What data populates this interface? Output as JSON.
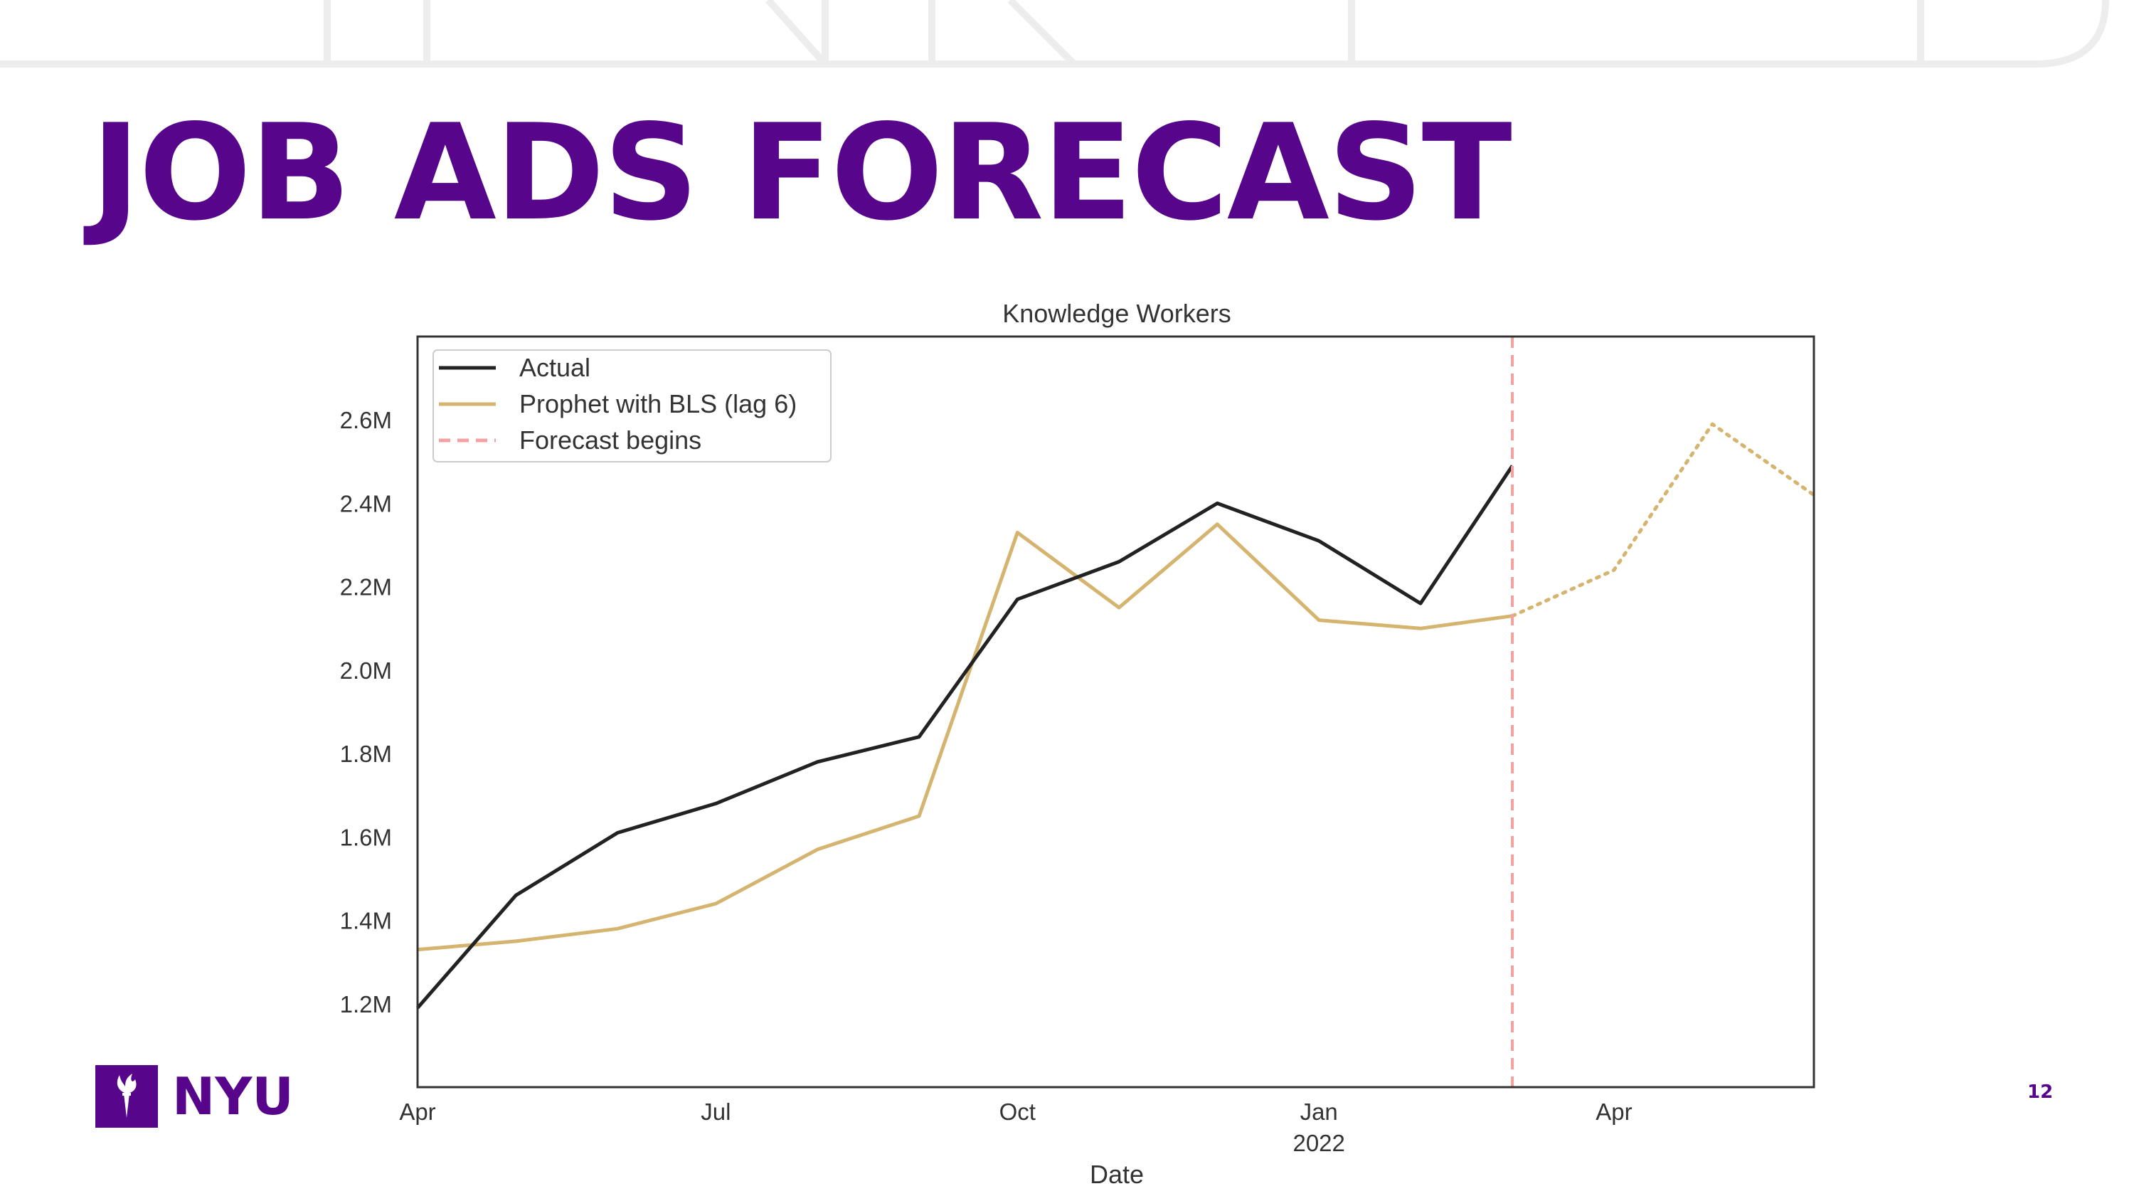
{
  "slide": {
    "title": "JOB ADS FORECAST",
    "page_number": "12",
    "logo_text": "NYU",
    "accent_color": "#57068c"
  },
  "chart_data": {
    "type": "line",
    "title": "Knowledge Workers",
    "xlabel": "Date",
    "ylabel": "",
    "x_ticks": [
      {
        "date": "2021-04-01",
        "label": "Apr",
        "sublabel": ""
      },
      {
        "date": "2021-07-01",
        "label": "Jul",
        "sublabel": ""
      },
      {
        "date": "2021-10-01",
        "label": "Oct",
        "sublabel": ""
      },
      {
        "date": "2022-01-01",
        "label": "Jan",
        "sublabel": "2022"
      },
      {
        "date": "2022-04-01",
        "label": "Apr",
        "sublabel": ""
      }
    ],
    "y_ticks": [
      {
        "value": 1200000,
        "label": "1.2M"
      },
      {
        "value": 1400000,
        "label": "1.4M"
      },
      {
        "value": 1600000,
        "label": "1.6M"
      },
      {
        "value": 1800000,
        "label": "1.8M"
      },
      {
        "value": 2000000,
        "label": "2.0M"
      },
      {
        "value": 2200000,
        "label": "2.2M"
      },
      {
        "value": 2400000,
        "label": "2.4M"
      },
      {
        "value": 2600000,
        "label": "2.6M"
      }
    ],
    "xlim": [
      "2021-04-01",
      "2022-06-01"
    ],
    "ylim": [
      1000000,
      2800000
    ],
    "grid": false,
    "legend_position": "top-left",
    "series": [
      {
        "name": "Actual",
        "color": "#222222",
        "style": "solid",
        "points": [
          [
            "2021-04-01",
            1190000
          ],
          [
            "2021-05-01",
            1460000
          ],
          [
            "2021-06-01",
            1610000
          ],
          [
            "2021-07-01",
            1680000
          ],
          [
            "2021-08-01",
            1780000
          ],
          [
            "2021-09-01",
            1840000
          ],
          [
            "2021-10-01",
            2170000
          ],
          [
            "2021-11-01",
            2260000
          ],
          [
            "2021-12-01",
            2400000
          ],
          [
            "2022-01-01",
            2310000
          ],
          [
            "2022-02-01",
            2160000
          ],
          [
            "2022-03-01",
            2490000
          ]
        ]
      },
      {
        "name": "Prophet with BLS (lag 6)",
        "color": "#d4b46e",
        "style": "solid",
        "points": [
          [
            "2021-04-01",
            1330000
          ],
          [
            "2021-05-01",
            1350000
          ],
          [
            "2021-06-01",
            1380000
          ],
          [
            "2021-07-01",
            1440000
          ],
          [
            "2021-08-01",
            1570000
          ],
          [
            "2021-09-01",
            1650000
          ],
          [
            "2021-10-01",
            2330000
          ],
          [
            "2021-11-01",
            2150000
          ],
          [
            "2021-12-01",
            2350000
          ],
          [
            "2022-01-01",
            2120000
          ],
          [
            "2022-02-01",
            2100000
          ],
          [
            "2022-03-01",
            2130000
          ]
        ]
      },
      {
        "name": "",
        "color": "#d4b46e",
        "style": "dotted",
        "points": [
          [
            "2022-03-01",
            2130000
          ],
          [
            "2022-04-01",
            2240000
          ],
          [
            "2022-05-01",
            2590000
          ],
          [
            "2022-06-01",
            2420000
          ]
        ]
      }
    ],
    "vertical_line": {
      "name": "Forecast begins",
      "date": "2022-03-01",
      "color": "#f4a0a0",
      "style": "dashed"
    },
    "legend": [
      {
        "label": "Actual",
        "color": "#222222",
        "style": "solid"
      },
      {
        "label": "Prophet with BLS (lag 6)",
        "color": "#d4b46e",
        "style": "solid"
      },
      {
        "label": "Forecast begins",
        "color": "#f4a0a0",
        "style": "dashed"
      }
    ]
  }
}
